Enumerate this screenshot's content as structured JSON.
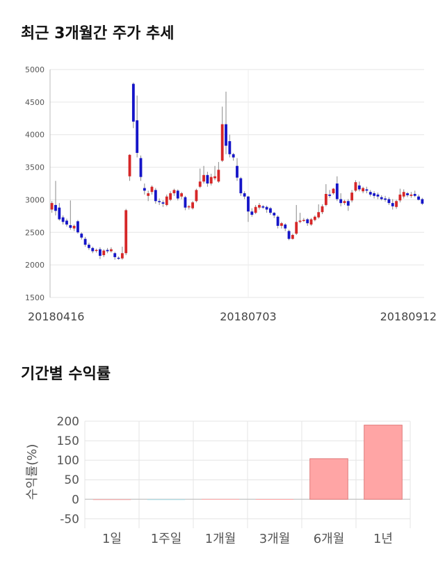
{
  "sections": {
    "price_title": "최근 3개월간 주가 추세",
    "return_title": "기간별 수익률"
  },
  "chart_data": [
    {
      "type": "candlestick",
      "title": "최근 3개월간 주가 추세",
      "ylim": [
        1500,
        5000
      ],
      "y_ticks": [
        1500,
        2000,
        2500,
        3000,
        3500,
        4000,
        4500,
        5000
      ],
      "x_tick_labels": [
        {
          "index": 0,
          "label": "20180416"
        },
        {
          "index": 53,
          "label": "20180703"
        },
        {
          "index": 105,
          "label": "20180912"
        }
      ],
      "grid": true,
      "colors": {
        "up": "#d62728",
        "down": "#1515c8",
        "wick": "#888888"
      },
      "candles": [
        [
          2850,
          2950,
          2800,
          2980
        ],
        [
          2920,
          2830,
          2760,
          3290
        ],
        [
          2880,
          2700,
          2680,
          2950
        ],
        [
          2730,
          2660,
          2620,
          2760
        ],
        [
          2680,
          2620,
          2590,
          2710
        ],
        [
          2610,
          2570,
          2540,
          2990
        ],
        [
          2560,
          2600,
          2520,
          2620
        ],
        [
          2670,
          2500,
          2480,
          2690
        ],
        [
          2480,
          2420,
          2390,
          2500
        ],
        [
          2400,
          2310,
          2280,
          2430
        ],
        [
          2310,
          2260,
          2230,
          2340
        ],
        [
          2260,
          2210,
          2180,
          2280
        ],
        [
          2220,
          2230,
          2190,
          2250
        ],
        [
          2240,
          2140,
          2090,
          2270
        ],
        [
          2150,
          2220,
          2120,
          2240
        ],
        [
          2230,
          2210,
          2180,
          2260
        ],
        [
          2210,
          2240,
          2190,
          2270
        ],
        [
          2180,
          2120,
          2080,
          2200
        ],
        [
          2110,
          2100,
          2080,
          2130
        ],
        [
          2100,
          2180,
          2080,
          2280
        ],
        [
          2180,
          2840,
          2150,
          2860
        ],
        [
          3360,
          3690,
          3290,
          3700
        ],
        [
          4780,
          4200,
          4100,
          4800
        ],
        [
          4220,
          3720,
          3650,
          4600
        ],
        [
          3640,
          3350,
          3290,
          3680
        ],
        [
          3180,
          3140,
          3080,
          3250
        ],
        [
          3060,
          3100,
          2980,
          3140
        ],
        [
          3120,
          3200,
          3080,
          3220
        ],
        [
          3150,
          2980,
          2940,
          3180
        ],
        [
          2980,
          2970,
          2920,
          3020
        ],
        [
          2960,
          2940,
          2890,
          2990
        ],
        [
          2920,
          3050,
          2900,
          3080
        ],
        [
          3000,
          3100,
          2980,
          3130
        ],
        [
          3100,
          3150,
          3060,
          3170
        ],
        [
          3140,
          3020,
          2990,
          3160
        ],
        [
          3050,
          3100,
          3010,
          3120
        ],
        [
          3040,
          2880,
          2840,
          3060
        ],
        [
          2890,
          2900,
          2850,
          2920
        ],
        [
          2870,
          2960,
          2850,
          2980
        ],
        [
          2980,
          3150,
          2960,
          3170
        ],
        [
          3200,
          3280,
          3180,
          3480
        ],
        [
          3280,
          3380,
          3250,
          3520
        ],
        [
          3380,
          3250,
          3200,
          3430
        ],
        [
          3250,
          3350,
          3220,
          3400
        ],
        [
          3330,
          3360,
          3300,
          3520
        ],
        [
          3280,
          3460,
          3260,
          3580
        ],
        [
          3600,
          4160,
          3580,
          4430
        ],
        [
          4160,
          3830,
          3700,
          4660
        ],
        [
          3900,
          3700,
          3650,
          4000
        ],
        [
          3700,
          3650,
          3600,
          3720
        ],
        [
          3520,
          3340,
          3290,
          3640
        ],
        [
          3330,
          3100,
          3060,
          3350
        ],
        [
          3100,
          3050,
          3010,
          3130
        ],
        [
          3050,
          2820,
          2660,
          3060
        ],
        [
          2820,
          2770,
          2740,
          2870
        ],
        [
          2800,
          2890,
          2780,
          2920
        ],
        [
          2880,
          2920,
          2850,
          2950
        ],
        [
          2900,
          2880,
          2860,
          2920
        ],
        [
          2890,
          2850,
          2800,
          2910
        ],
        [
          2870,
          2800,
          2770,
          2890
        ],
        [
          2800,
          2760,
          2720,
          2810
        ],
        [
          2740,
          2600,
          2560,
          2760
        ],
        [
          2600,
          2640,
          2560,
          2660
        ],
        [
          2620,
          2560,
          2520,
          2640
        ],
        [
          2520,
          2400,
          2380,
          2540
        ],
        [
          2400,
          2460,
          2390,
          2480
        ],
        [
          2480,
          2660,
          2460,
          2920
        ],
        [
          2660,
          2680,
          2640,
          2800
        ],
        [
          2680,
          2690,
          2660,
          2720
        ],
        [
          2700,
          2640,
          2600,
          2720
        ],
        [
          2620,
          2700,
          2600,
          2720
        ],
        [
          2690,
          2740,
          2670,
          2760
        ],
        [
          2730,
          2810,
          2710,
          2930
        ],
        [
          2810,
          2900,
          2780,
          2930
        ],
        [
          2920,
          3090,
          2900,
          3240
        ],
        [
          3080,
          3060,
          3030,
          3150
        ],
        [
          3100,
          3170,
          3080,
          3180
        ],
        [
          3250,
          3010,
          2980,
          3360
        ],
        [
          3010,
          2950,
          2900,
          3100
        ],
        [
          2950,
          2980,
          2920,
          3000
        ],
        [
          2980,
          2910,
          2830,
          3010
        ],
        [
          2990,
          3110,
          2960,
          3150
        ],
        [
          3140,
          3270,
          3120,
          3300
        ],
        [
          3220,
          3160,
          3130,
          3280
        ],
        [
          3130,
          3180,
          3100,
          3200
        ],
        [
          3160,
          3140,
          3100,
          3200
        ],
        [
          3120,
          3080,
          3050,
          3150
        ],
        [
          3100,
          3060,
          3020,
          3130
        ],
        [
          3080,
          3050,
          3010,
          3110
        ],
        [
          3040,
          3010,
          2990,
          3070
        ],
        [
          3020,
          3000,
          2970,
          3060
        ],
        [
          3010,
          2950,
          2920,
          3040
        ],
        [
          2950,
          2900,
          2850,
          3010
        ],
        [
          2890,
          2980,
          2860,
          3000
        ],
        [
          2990,
          3080,
          2960,
          3170
        ],
        [
          3050,
          3120,
          3020,
          3160
        ],
        [
          3100,
          3070,
          3040,
          3120
        ],
        [
          3060,
          3080,
          3030,
          3120
        ],
        [
          3090,
          3060,
          3040,
          3140
        ],
        [
          3050,
          3000,
          2990,
          3080
        ],
        [
          3010,
          2940,
          2920,
          3030
        ]
      ]
    },
    {
      "type": "bar",
      "title": "기간별 수익률",
      "ylabel": "수익률(%)",
      "ylim": [
        -60,
        200
      ],
      "y_ticks": [
        -50,
        0,
        50,
        100,
        150,
        200
      ],
      "categories": [
        "1일",
        "1주일",
        "1개월",
        "3개월",
        "6개월",
        "1년"
      ],
      "values": [
        0,
        -1.5,
        0.8,
        0.5,
        104,
        190
      ],
      "colors": {
        "positive": "#ffa5a5",
        "negative": "#a8e0ea",
        "positive_edge": "#e07b7b"
      },
      "grid": true
    }
  ]
}
